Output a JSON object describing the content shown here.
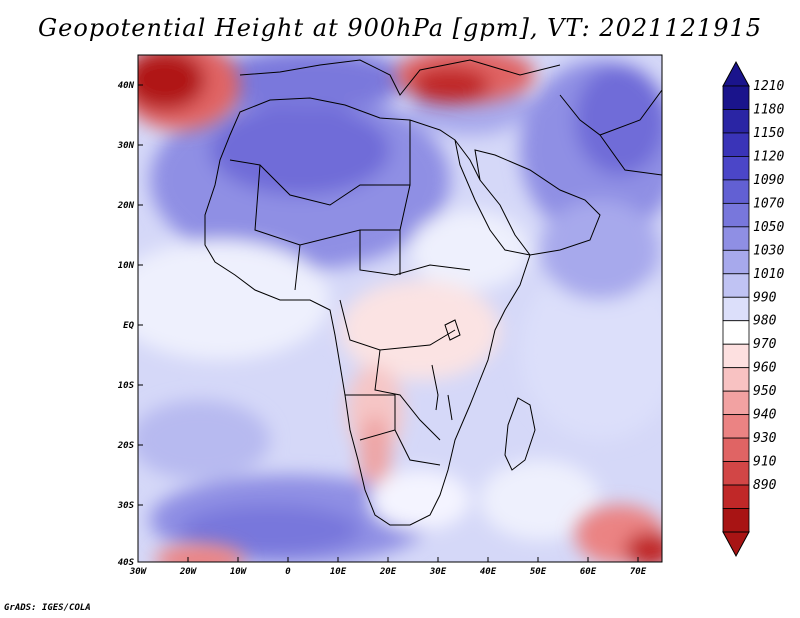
{
  "map": {
    "title": "Geopotential Height at 900hPa [gpm], VT: 2021121915",
    "credit": "GrADS: IGES/COLA",
    "lon_labels": [
      "30W",
      "20W",
      "10W",
      "0",
      "10E",
      "20E",
      "30E",
      "40E",
      "50E",
      "60E",
      "70E"
    ],
    "lat_labels": [
      "40N",
      "30N",
      "20N",
      "10N",
      "EQ",
      "10S",
      "20S",
      "30S",
      "40S"
    ],
    "lon_range": [
      -30,
      75
    ],
    "lat_range": [
      -40,
      45
    ],
    "units": "gpm",
    "level": "900hPa",
    "valid_time": "2021121915"
  },
  "colorbar": {
    "labels": [
      "1210",
      "1180",
      "1150",
      "1120",
      "1090",
      "1070",
      "1050",
      "1030",
      "1010",
      "990",
      "980",
      "970",
      "960",
      "950",
      "940",
      "930",
      "910",
      "890"
    ],
    "colors": [
      "#1a148c",
      "#2a25a4",
      "#3a34b8",
      "#4b46c8",
      "#6260d3",
      "#7877dc",
      "#8f8fe4",
      "#a7a9ec",
      "#c0c3f3",
      "#dcdffa",
      "#ffffff",
      "#fde0e0",
      "#f8c2c2",
      "#f2a2a2",
      "#eb8383",
      "#e06464",
      "#d24646",
      "#c02828",
      "#a81414"
    ],
    "cap_top_color": "#1a148c",
    "cap_bottom_color": "#a81414"
  }
}
